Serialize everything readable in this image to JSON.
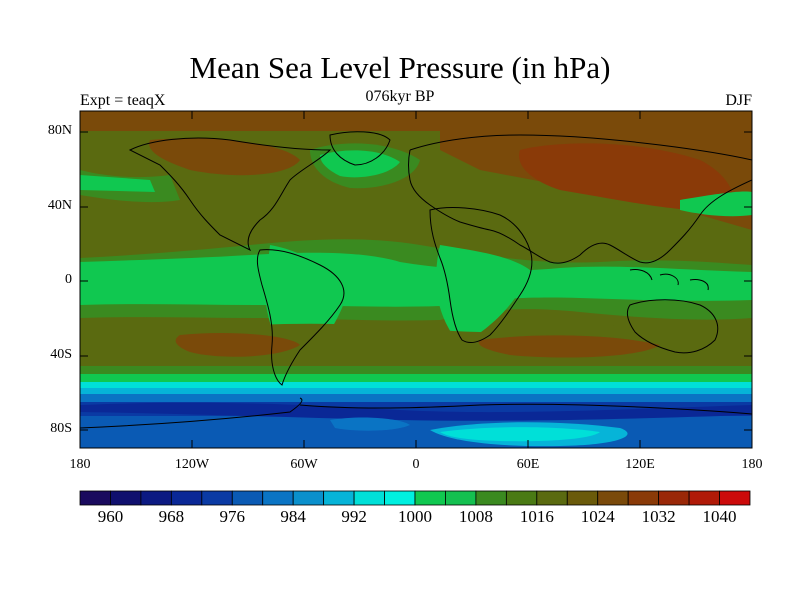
{
  "title": "Mean Sea Level Pressure (in hPa)",
  "subtitle_left": "Expt = teaqX",
  "subtitle_center": "076kyr BP",
  "subtitle_right": "DJF",
  "lat_labels": [
    "80N",
    "40N",
    "0",
    "40S",
    "80S"
  ],
  "lon_labels": [
    "180",
    "120W",
    "60W",
    "0",
    "60E",
    "120E",
    "180"
  ],
  "colorbar": {
    "labels": [
      "960",
      "968",
      "976",
      "984",
      "992",
      "1000",
      "1008",
      "1016",
      "1024",
      "1032",
      "1040"
    ],
    "colors": [
      "#1a0a5e",
      "#10106e",
      "#0c1a82",
      "#0a2896",
      "#0a3aa4",
      "#0a5ab4",
      "#0a74c4",
      "#0a90cc",
      "#06b4d8",
      "#00e0d8",
      "#00f0e0",
      "#10c850",
      "#14c050",
      "#3a8a20",
      "#4a7a14",
      "#5a6a10",
      "#6a5a0a",
      "#7a4a0a",
      "#8a3a08",
      "#9a2808",
      "#b01a08",
      "#cc0a0a"
    ]
  },
  "map_colors": {
    "deep_low": "#0a3aa4",
    "low": "#0a5ab4",
    "mid_low": "#0a74c4",
    "cyan": "#00e0d8",
    "green": "#10c850",
    "green_dark": "#3a8a20",
    "olive": "#5a6a10",
    "brown": "#7a4a0a",
    "red_brown": "#8a3a08",
    "coast": "#000000"
  }
}
